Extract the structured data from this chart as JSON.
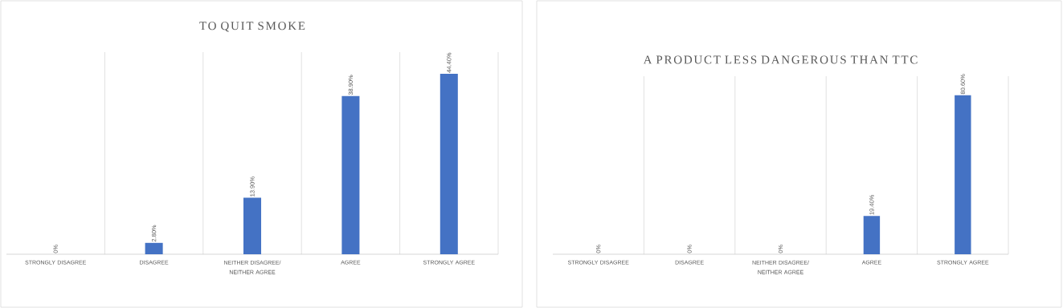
{
  "chart_data": [
    {
      "type": "bar",
      "title": "TO QUIT SMOKE",
      "categories": [
        "STRONGLY DISAGREE",
        "DISAGREE",
        "NEITHER DISAGREE/ NEITHER AGREE",
        "AGREE",
        "STRONGLY AGREE"
      ],
      "values": [
        0,
        2.8,
        13.9,
        38.9,
        44.4
      ],
      "value_labels": [
        "0%",
        "2.80%",
        "13.90%",
        "38.90%",
        "44.40%"
      ],
      "color": "#4472c4",
      "grid": "x"
    },
    {
      "type": "bar",
      "title": "A PRODUCT LESS DANGEROUS THAN TTC",
      "categories": [
        "STRONGLY DISAGREE",
        "DISAGREE",
        "NEITHER DISAGREE/ NEITHER AGREE",
        "AGREE",
        "STRONGLY AGREE"
      ],
      "values": [
        0,
        0,
        0,
        19.4,
        80.6
      ],
      "value_labels": [
        "0%",
        "0%",
        "0%",
        "19.40%",
        "80.60%"
      ],
      "color": "#4472c4",
      "grid": "x"
    }
  ]
}
